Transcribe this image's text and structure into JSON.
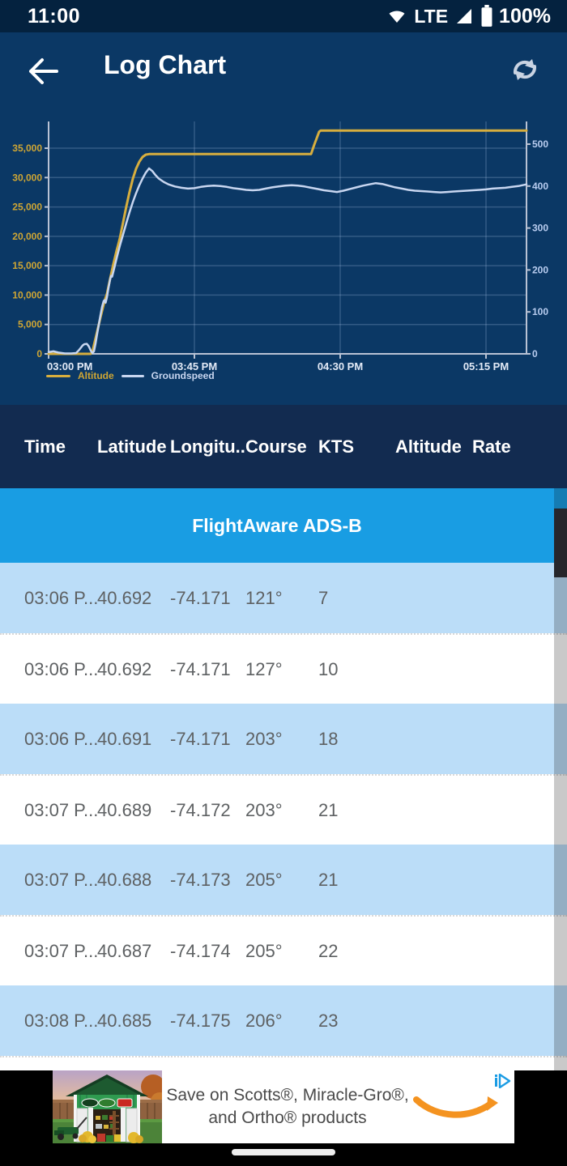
{
  "status_bar": {
    "time": "11:00",
    "network": "LTE",
    "battery_percent": "100%"
  },
  "header": {
    "title": "Log Chart"
  },
  "chart_data": {
    "type": "line",
    "title": "",
    "grid": true,
    "legend_position": "bottom-left",
    "x_axis": {
      "ticks": [
        {
          "label": "03:00 PM",
          "min": 0
        },
        {
          "label": "03:45 PM",
          "min": 45
        },
        {
          "label": "04:30 PM",
          "min": 90
        },
        {
          "label": "05:15 PM",
          "min": 135
        }
      ],
      "range_minutes": [
        0,
        147.5
      ]
    },
    "y_axis_left": {
      "series": "Altitude",
      "unit": "ft",
      "tick_values": [
        0,
        5000,
        10000,
        15000,
        20000,
        25000,
        30000,
        35000
      ],
      "tick_labels": [
        "0",
        "5,000",
        "10,000",
        "15,000",
        "20,000",
        "25,000",
        "30,000",
        "35,000"
      ],
      "range": [
        0,
        38500
      ]
    },
    "y_axis_right": {
      "series": "Groundspeed",
      "unit": "kts",
      "tick_values": [
        0,
        100,
        200,
        300,
        400,
        500
      ],
      "tick_labels": [
        "0",
        "100",
        "200",
        "300",
        "400",
        "500"
      ],
      "range": [
        0,
        500
      ]
    },
    "legend": [
      {
        "label": "Altitude",
        "color": "#d7ae3e"
      },
      {
        "label": "Groundspeed",
        "color": "#c8d6f0"
      }
    ],
    "series": [
      {
        "name": "Altitude",
        "axis": "left",
        "color": "#d7ae3e",
        "points": [
          [
            0,
            0
          ],
          [
            13,
            0
          ],
          [
            13.5,
            300
          ],
          [
            14,
            1500
          ],
          [
            15,
            3800
          ],
          [
            16,
            6200
          ],
          [
            17,
            8400
          ],
          [
            17.4,
            9200
          ],
          [
            18,
            10200
          ],
          [
            19,
            12800
          ],
          [
            20,
            15300
          ],
          [
            21,
            17600
          ],
          [
            21.4,
            18400
          ],
          [
            22,
            19700
          ],
          [
            23,
            22400
          ],
          [
            24,
            25100
          ],
          [
            25,
            27600
          ],
          [
            26,
            29800
          ],
          [
            27,
            31500
          ],
          [
            28,
            32700
          ],
          [
            29,
            33500
          ],
          [
            30,
            33900
          ],
          [
            31,
            34000
          ],
          [
            81,
            34000
          ],
          [
            82,
            35600
          ],
          [
            83.5,
            37800
          ],
          [
            84,
            38000
          ],
          [
            147.5,
            38000
          ]
        ]
      },
      {
        "name": "Groundspeed",
        "axis": "right",
        "color": "#c8d6f0",
        "points": [
          [
            0,
            4
          ],
          [
            1.5,
            6
          ],
          [
            3,
            3
          ],
          [
            5,
            1
          ],
          [
            7,
            1
          ],
          [
            8.5,
            2
          ],
          [
            9.5,
            10
          ],
          [
            10.5,
            20
          ],
          [
            11,
            23
          ],
          [
            11.8,
            24
          ],
          [
            12.4,
            18
          ],
          [
            13,
            8
          ],
          [
            13.5,
            2
          ],
          [
            14,
            6
          ],
          [
            14.5,
            25
          ],
          [
            15,
            48
          ],
          [
            15.5,
            70
          ],
          [
            16,
            92
          ],
          [
            16.5,
            112
          ],
          [
            17,
            126
          ],
          [
            17.3,
            128
          ],
          [
            17.6,
            122
          ],
          [
            18,
            135
          ],
          [
            18.5,
            158
          ],
          [
            19,
            178
          ],
          [
            19.3,
            186
          ],
          [
            19.6,
            184
          ],
          [
            20,
            196
          ],
          [
            20.5,
            212
          ],
          [
            21,
            228
          ],
          [
            21.5,
            243
          ],
          [
            22,
            258
          ],
          [
            23,
            285
          ],
          [
            24,
            312
          ],
          [
            25,
            338
          ],
          [
            26,
            362
          ],
          [
            27,
            383
          ],
          [
            28,
            402
          ],
          [
            29,
            418
          ],
          [
            30,
            432
          ],
          [
            31,
            442
          ],
          [
            32,
            436
          ],
          [
            33,
            426
          ],
          [
            34,
            418
          ],
          [
            35.5,
            410
          ],
          [
            37,
            404
          ],
          [
            39,
            399
          ],
          [
            41,
            396
          ],
          [
            43,
            394
          ],
          [
            45,
            395
          ],
          [
            47,
            398
          ],
          [
            49,
            400
          ],
          [
            51,
            401
          ],
          [
            53,
            400
          ],
          [
            55,
            398
          ],
          [
            57,
            395
          ],
          [
            59,
            393
          ],
          [
            61,
            391
          ],
          [
            63,
            390
          ],
          [
            65,
            391
          ],
          [
            67,
            394
          ],
          [
            69,
            397
          ],
          [
            71,
            399
          ],
          [
            73,
            401
          ],
          [
            75,
            402
          ],
          [
            77,
            401
          ],
          [
            79,
            399
          ],
          [
            81,
            396
          ],
          [
            83,
            393
          ],
          [
            85,
            390
          ],
          [
            87,
            388
          ],
          [
            89,
            386
          ],
          [
            91,
            389
          ],
          [
            93,
            393
          ],
          [
            95,
            397
          ],
          [
            97,
            401
          ],
          [
            99,
            404
          ],
          [
            101,
            407
          ],
          [
            103,
            405
          ],
          [
            105,
            401
          ],
          [
            107,
            397
          ],
          [
            109,
            394
          ],
          [
            111,
            391
          ],
          [
            113,
            389
          ],
          [
            115,
            388
          ],
          [
            117,
            387
          ],
          [
            119,
            386
          ],
          [
            121,
            385
          ],
          [
            123,
            386
          ],
          [
            125,
            387
          ],
          [
            127,
            388
          ],
          [
            129,
            389
          ],
          [
            131,
            390
          ],
          [
            133,
            391
          ],
          [
            135,
            392
          ],
          [
            137,
            394
          ],
          [
            139,
            395
          ],
          [
            141,
            396
          ],
          [
            143,
            398
          ],
          [
            145,
            400
          ],
          [
            147.5,
            404
          ]
        ]
      }
    ]
  },
  "table": {
    "columns": [
      "Time",
      "Latitude",
      "Longitu...",
      "Course",
      "KTS",
      "Altitude",
      "Rate"
    ],
    "source_banner": "FlightAware ADS-B",
    "rows": [
      [
        "03:06 P...",
        "40.692",
        "-74.171",
        "121°",
        "7",
        "",
        ""
      ],
      [
        "03:06 P...",
        "40.692",
        "-74.171",
        "127°",
        "10",
        "",
        ""
      ],
      [
        "03:06 P...",
        "40.691",
        "-74.171",
        "203°",
        "18",
        "",
        ""
      ],
      [
        "03:07 P...",
        "40.689",
        "-74.172",
        "203°",
        "21",
        "",
        ""
      ],
      [
        "03:07 P...",
        "40.688",
        "-74.173",
        "205°",
        "21",
        "",
        ""
      ],
      [
        "03:07 P...",
        "40.687",
        "-74.174",
        "205°",
        "22",
        "",
        ""
      ],
      [
        "03:08 P...",
        "40.685",
        "-74.175",
        "206°",
        "23",
        "",
        ""
      ]
    ]
  },
  "ad": {
    "line1": "Save on Scotts®, Miracle-Gro®,",
    "line2": "and Ortho® products"
  },
  "colors": {
    "status_bar": "#04223f",
    "app_bar": "#0b3865",
    "table_header_band": "#122b50",
    "banner_blue": "#199de3",
    "row_alt_blue": "#bbddf8",
    "altitude_gold": "#d7ae3e",
    "groundspeed_blue": "#c8d6f0",
    "amazon_orange": "#f49320"
  }
}
